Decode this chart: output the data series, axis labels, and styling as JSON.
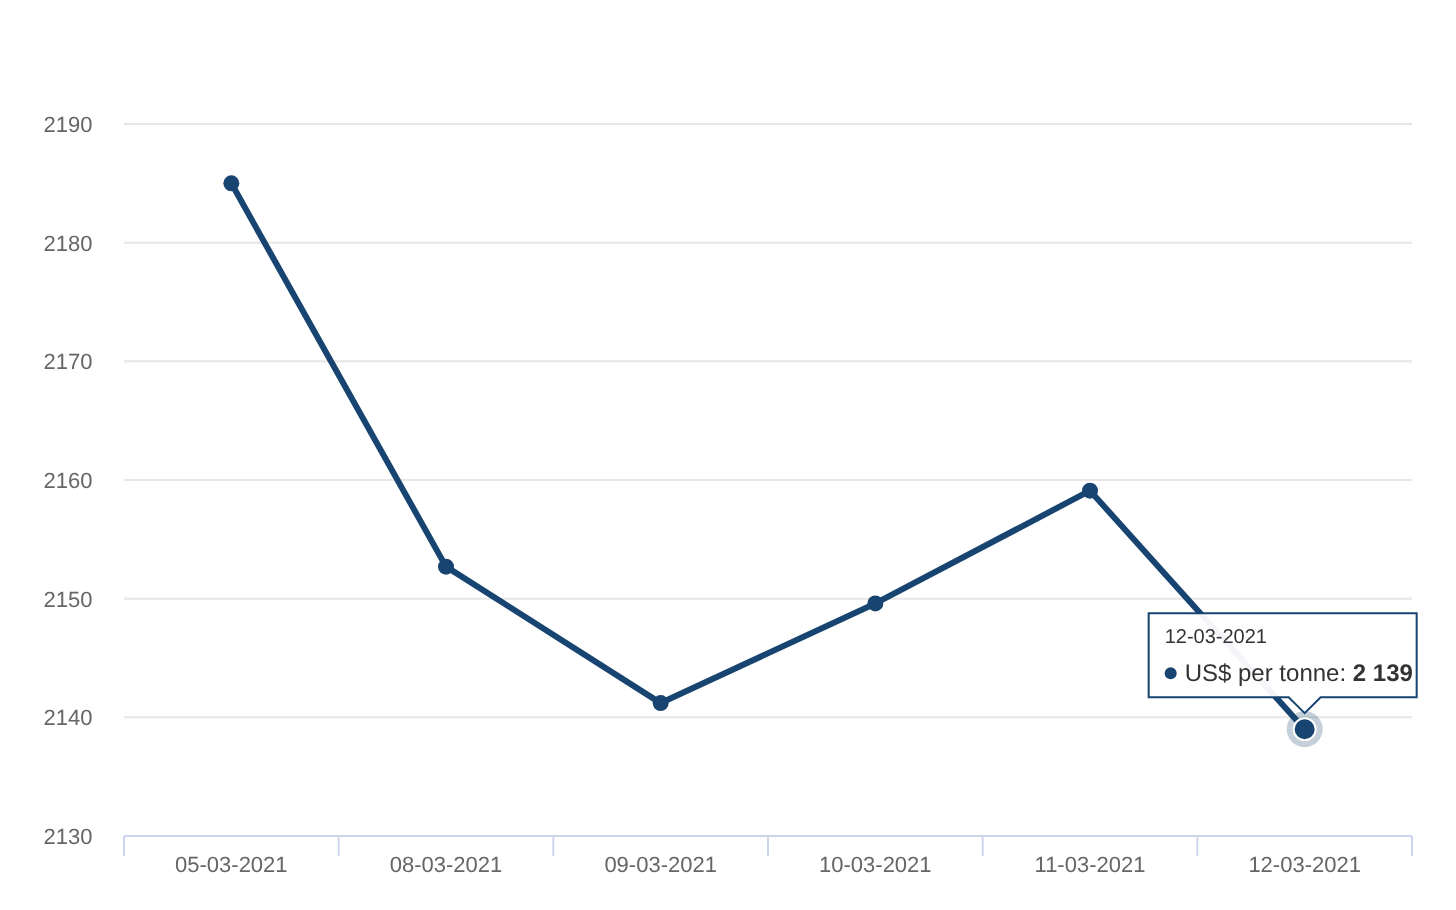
{
  "chart_data": {
    "type": "line",
    "categories": [
      "05-03-2021",
      "08-03-2021",
      "09-03-2021",
      "10-03-2021",
      "11-03-2021",
      "12-03-2021"
    ],
    "series": [
      {
        "color": "#174470",
        "values": [
          2185,
          2152.7,
          2141.2,
          2149.6,
          2159.1,
          2139
        ]
      }
    ],
    "ylim": [
      2130,
      2190
    ],
    "yticks": [
      2130,
      2140,
      2150,
      2160,
      2170,
      2180,
      2190
    ],
    "grid": "y",
    "marker": "circle",
    "annotations": [
      "12-03-2021",
      "US$ per tonne: ",
      "2 139"
    ]
  }
}
